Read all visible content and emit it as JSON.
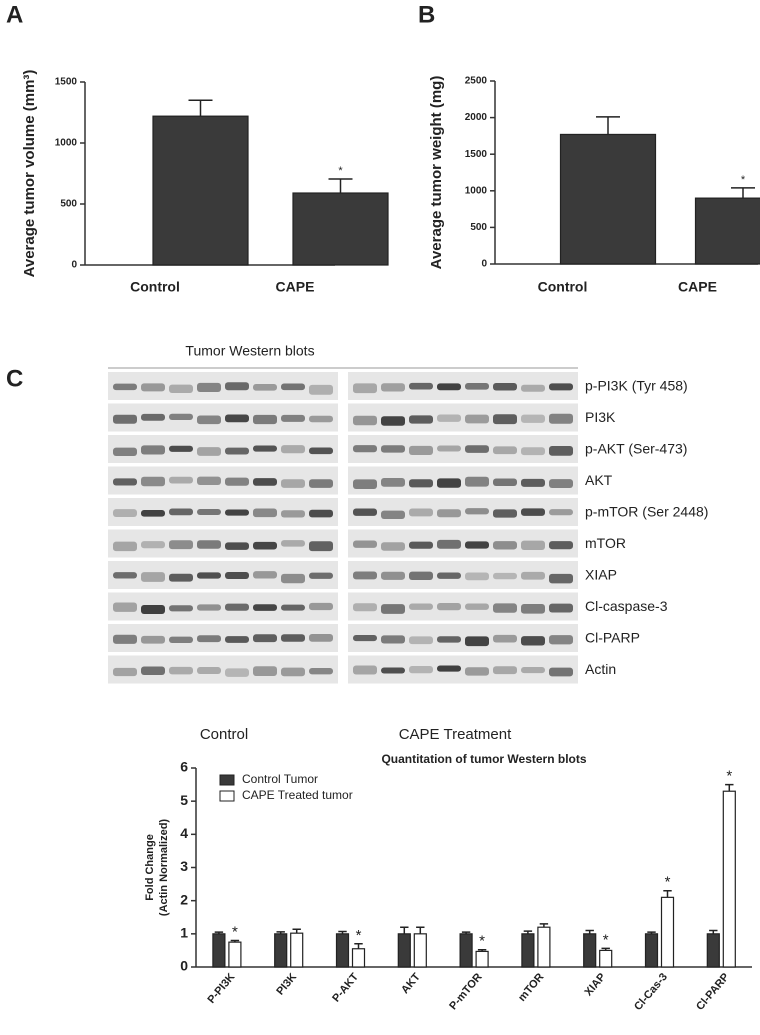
{
  "panels": [
    "A",
    "B",
    "C"
  ],
  "blot": {
    "title": "Tumor Western blots",
    "labels": [
      "p-PI3K (Tyr 458)",
      "PI3K",
      "p-AKT (Ser-473)",
      "AKT",
      "p-mTOR (Ser 2448)",
      "mTOR",
      "XIAP",
      "Cl-caspase-3",
      "Cl-PARP",
      "Actin"
    ],
    "groups": [
      "Control",
      "CAPE Treatment"
    ]
  },
  "chart_data": [
    {
      "type": "bar",
      "ylabel": "Average tumor volume (mm³)",
      "categories": [
        "Control",
        "CAPE"
      ],
      "series": [
        {
          "name": null,
          "color": "#3a3a3a",
          "values": [
            1220,
            590
          ],
          "errors": [
            130,
            115
          ],
          "annotations": [
            null,
            "*"
          ]
        }
      ],
      "ylim": [
        0,
        1500
      ],
      "yticks": [
        0,
        500,
        1000,
        1500
      ]
    },
    {
      "type": "bar",
      "ylabel": "Average tumor weight (mg)",
      "categories": [
        "Control",
        "CAPE"
      ],
      "series": [
        {
          "name": null,
          "color": "#3a3a3a",
          "values": [
            1770,
            900
          ],
          "errors": [
            240,
            140
          ],
          "annotations": [
            null,
            "*"
          ]
        }
      ],
      "ylim": [
        0,
        2500
      ],
      "yticks": [
        0,
        500,
        1000,
        1500,
        2000,
        2500
      ]
    },
    {
      "type": "bar",
      "title": "Quantitation of tumor Western blots",
      "ylabel": [
        "Fold Change",
        "(Actin Normalized)"
      ],
      "categories": [
        "P-PI3K",
        "PI3K",
        "P-AKT",
        "AKT",
        "P-mTOR",
        "mTOR",
        "XIAP",
        "Cl-Cas-3",
        "Cl-PARP"
      ],
      "series": [
        {
          "name": "Control Tumor",
          "color": "#3a3a3a",
          "values": [
            1,
            1,
            1,
            1,
            1,
            1,
            1,
            1,
            1
          ],
          "errors": [
            0.05,
            0.06,
            0.07,
            0.2,
            0.05,
            0.08,
            0.1,
            0.05,
            0.1
          ]
        },
        {
          "name": "CAPE Treated tumor",
          "color": "#ffffff",
          "values": [
            0.75,
            1.02,
            0.55,
            1.0,
            0.47,
            1.2,
            0.5,
            2.1,
            5.3
          ],
          "errors": [
            0.05,
            0.12,
            0.15,
            0.2,
            0.05,
            0.1,
            0.06,
            0.2,
            0.2
          ],
          "annotations": [
            "*",
            null,
            "*",
            null,
            "*",
            null,
            "*",
            "*",
            "*"
          ]
        }
      ],
      "ylim": [
        0,
        6
      ],
      "yticks": [
        0,
        1,
        2,
        3,
        4,
        5,
        6
      ],
      "legend": "upper left"
    }
  ]
}
